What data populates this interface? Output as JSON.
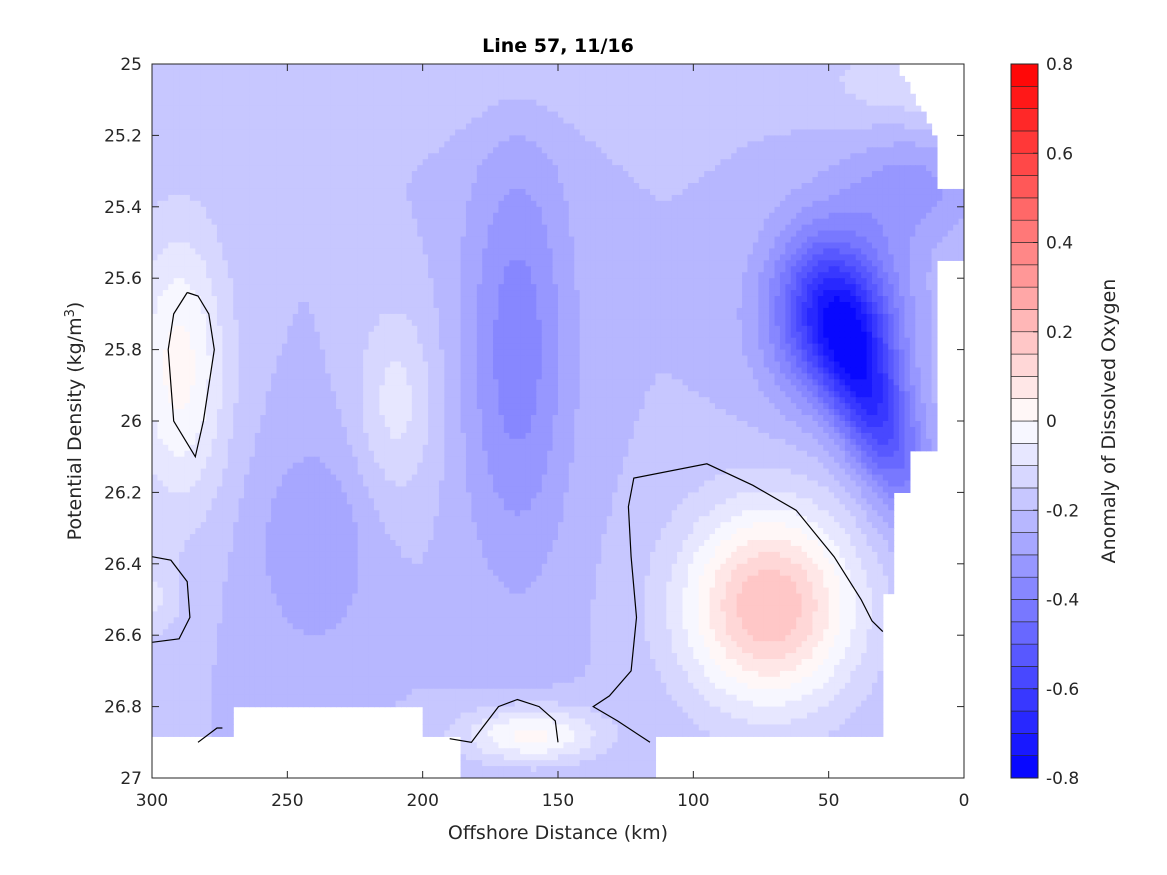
{
  "chart_data": {
    "type": "heatmap",
    "subtype": "filled-contour",
    "title": "Line 57, 11/16",
    "xlabel": "Offshore Distance (km)",
    "ylabel_main": "Potential Density (kg/m",
    "ylabel_sup": "3",
    "ylabel_end": ")",
    "colorbar_label": "Anomaly of Dissolved Oxygen",
    "xlim": [
      300,
      0
    ],
    "ylim": [
      25,
      27
    ],
    "y_reversed": true,
    "xticks": [
      300,
      250,
      200,
      150,
      100,
      50,
      0
    ],
    "xtick_labels": [
      "300",
      "250",
      "200",
      "150",
      "100",
      "50",
      "0"
    ],
    "yticks": [
      25,
      25.2,
      25.4,
      25.6,
      25.8,
      26,
      26.2,
      26.4,
      26.6,
      26.8,
      27
    ],
    "ytick_labels": [
      "25",
      "25.2",
      "25.4",
      "25.6",
      "25.8",
      "26",
      "26.2",
      "26.4",
      "26.6",
      "26.8",
      "27"
    ],
    "clim": [
      -0.8,
      0.8
    ],
    "contour_levels": 32,
    "cbar_ticks": [
      0.8,
      0.6,
      0.4,
      0.2,
      0,
      -0.2,
      -0.4,
      -0.6,
      -0.8
    ],
    "cbar_tick_labels": [
      "0.8",
      "0.6",
      "0.4",
      "0.2",
      "0",
      "-0.2",
      "-0.4",
      "-0.6",
      "-0.8"
    ],
    "colormap": {
      "negative_end": "#0000ff",
      "zero": "#ffffff",
      "positive_end": "#ff0000"
    },
    "zero_contour_color": "#000000",
    "features": [
      {
        "name": "strong negative core",
        "x_km": 50,
        "density": 25.62,
        "value": -0.75
      },
      {
        "name": "negative tongue",
        "x_km": 38,
        "density": 25.98,
        "value": -0.7
      },
      {
        "name": "offshore negative band",
        "x_km": 160,
        "density": 25.6,
        "value": -0.38
      },
      {
        "name": "positive core",
        "x_km": 68,
        "density": 26.5,
        "value": 0.3
      },
      {
        "name": "near-zero pocket",
        "x_km": 290,
        "density": 25.85,
        "value": 0.02
      },
      {
        "name": "deep positive patch",
        "x_km": 160,
        "density": 26.89,
        "value": 0.07
      }
    ]
  }
}
